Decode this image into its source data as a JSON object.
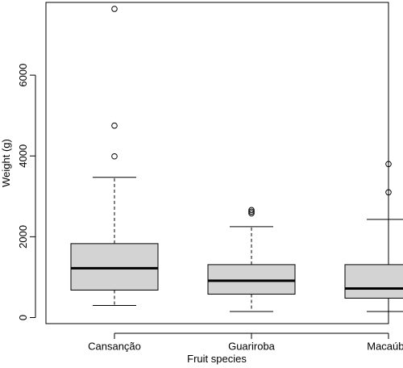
{
  "chart_data": {
    "type": "boxplot",
    "title": "",
    "xlabel": "Fruit species",
    "ylabel": "Weight (g)",
    "ylim": [
      -150,
      7800
    ],
    "y_ticks": [
      0,
      2000,
      4000,
      6000
    ],
    "y_tick_labels": [
      "0",
      "2000",
      "4000",
      "6000"
    ],
    "categories": [
      "Cansanção",
      "Guariroba",
      "Macaúba"
    ],
    "box_fill": "#d3d3d3",
    "boxes": [
      {
        "category": "Cansanção",
        "whisker_low": 300,
        "q1": 680,
        "median": 1220,
        "q3": 1830,
        "whisker_high": 3470,
        "outliers": [
          3990,
          4750,
          7640
        ]
      },
      {
        "category": "Guariroba",
        "whisker_low": 150,
        "q1": 580,
        "median": 910,
        "q3": 1310,
        "whisker_high": 2250,
        "outliers": [
          2580,
          2620,
          2660
        ]
      },
      {
        "category": "Macaúba",
        "whisker_low": 150,
        "q1": 480,
        "median": 720,
        "q3": 1310,
        "whisker_high": 2430,
        "outliers": [
          3100,
          3800
        ]
      }
    ]
  }
}
